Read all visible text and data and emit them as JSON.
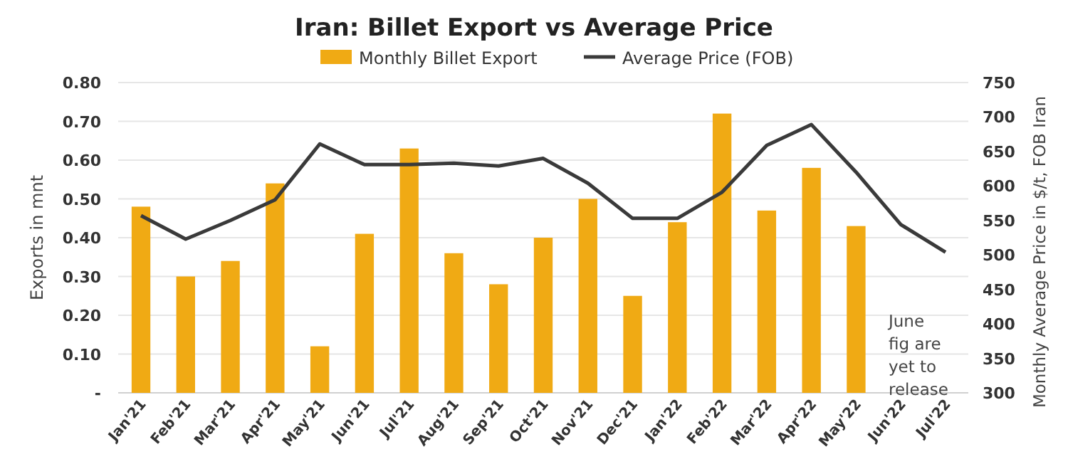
{
  "chart_data": {
    "type": "bar",
    "title": "Iran: Billet Export vs Average Price",
    "categories": [
      "Jan'21",
      "Feb'21",
      "Mar'21",
      "Apr'21",
      "May'21",
      "Jun'21",
      "Jul'21",
      "Aug'21",
      "Sep'21",
      "Oct'21",
      "Nov'21",
      "Dec'21",
      "Jan'22",
      "Feb'22",
      "Mar'22",
      "Apr'22",
      "May'22",
      "Jun'22",
      "Jul'22"
    ],
    "series": [
      {
        "name": "Monthly Billet Export",
        "color": "#f0aa14",
        "values": [
          0.48,
          0.3,
          0.34,
          0.54,
          0.12,
          0.41,
          0.63,
          0.36,
          0.28,
          0.4,
          0.5,
          0.25,
          0.44,
          0.72,
          0.47,
          0.58,
          0.43,
          null,
          null
        ]
      },
      {
        "name": "Average Price (FOB)",
        "type": "line",
        "axis": "y2",
        "color": "#3a3a3a",
        "values": [
          557,
          523,
          550,
          580,
          661,
          631,
          631,
          633,
          629,
          640,
          604,
          553,
          553,
          591,
          659,
          689,
          620,
          544,
          504
        ]
      }
    ],
    "ylabel": "Exports in mnt",
    "y2label": "Monthly Average Price in $/t, FOB Iran",
    "ylim": [
      0,
      0.8
    ],
    "yticks": [
      {
        "value": 0,
        "label": "-"
      },
      {
        "value": 0.1,
        "label": "0.10"
      },
      {
        "value": 0.2,
        "label": "0.20"
      },
      {
        "value": 0.3,
        "label": "0.30"
      },
      {
        "value": 0.4,
        "label": "0.40"
      },
      {
        "value": 0.5,
        "label": "0.50"
      },
      {
        "value": 0.6,
        "label": "0.60"
      },
      {
        "value": 0.7,
        "label": "0.70"
      },
      {
        "value": 0.8,
        "label": "0.80"
      }
    ],
    "y2lim": [
      300,
      750
    ],
    "y2ticks": [
      300,
      350,
      400,
      450,
      500,
      550,
      600,
      650,
      700,
      750
    ],
    "annotations": [
      "June fig are yet to release"
    ],
    "grid": "y",
    "legend": "top",
    "line_style": "solid",
    "marker": "none"
  }
}
